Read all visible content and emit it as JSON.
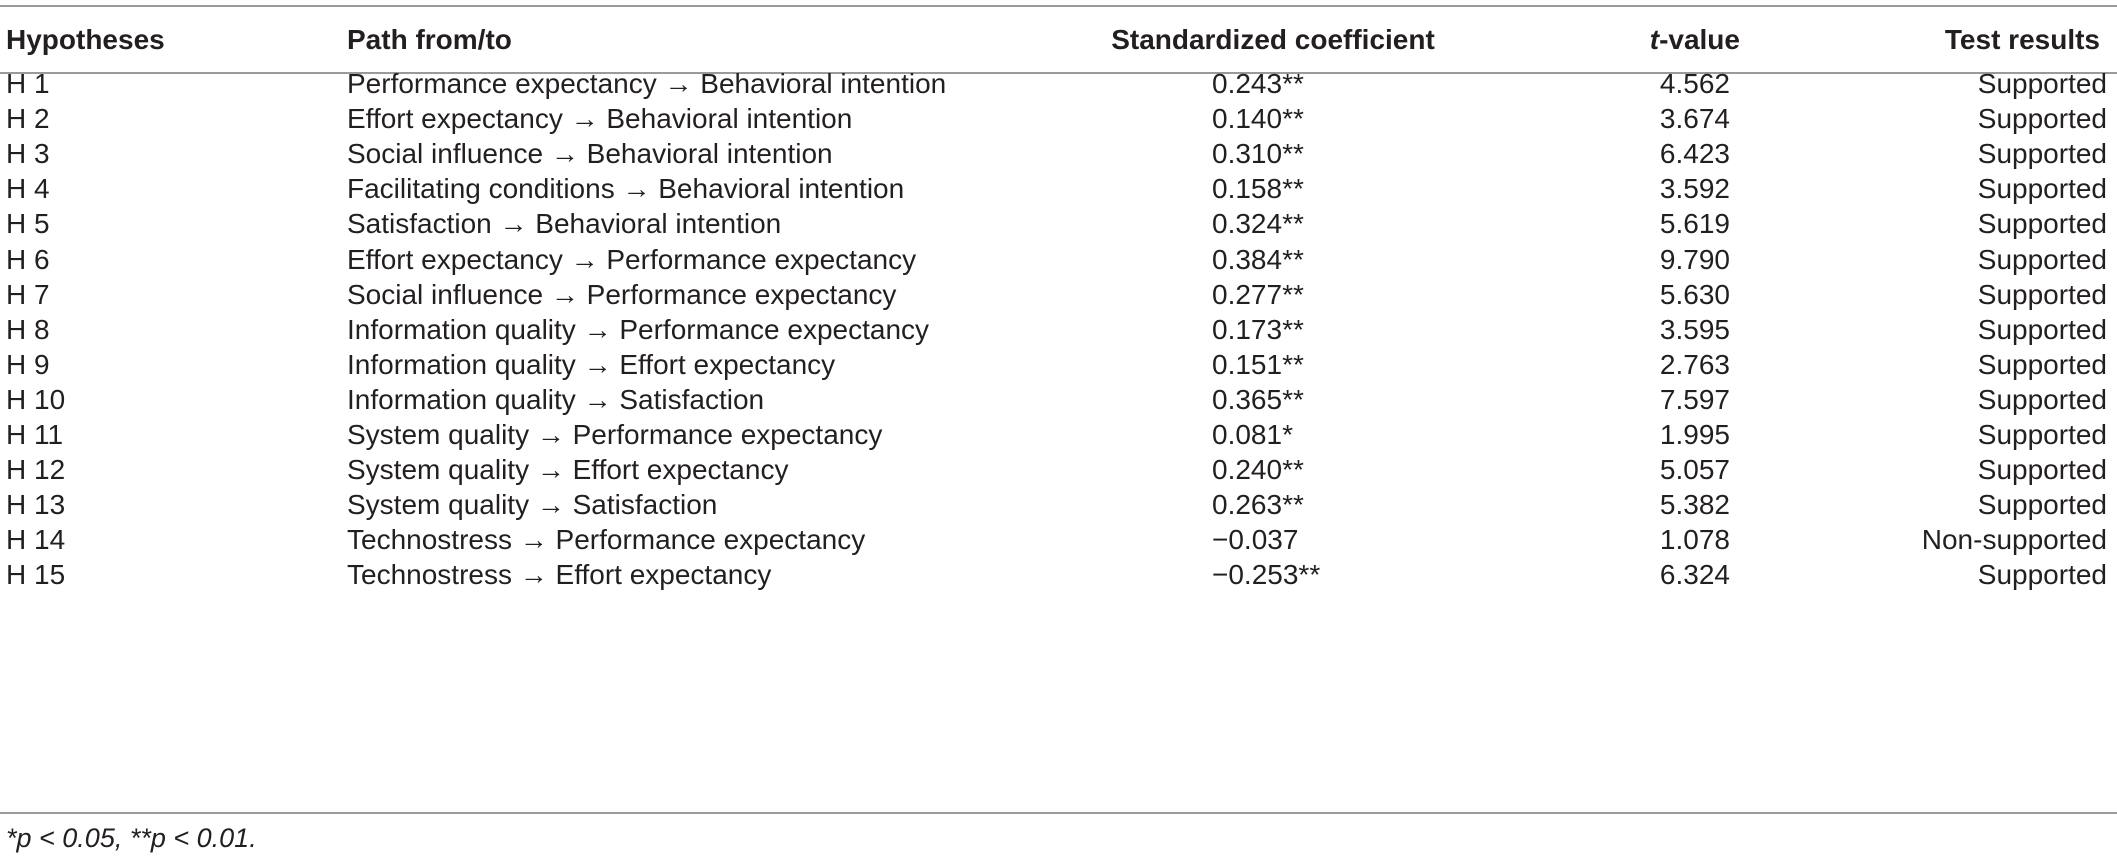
{
  "header": {
    "hypotheses": "Hypotheses",
    "path": "Path from/to",
    "coefficient": "Standardized coefficient",
    "t_value_italic": "t",
    "t_value_rest": "-value",
    "test_results": "Test results"
  },
  "rows": [
    {
      "h": "H 1",
      "path": "Performance expectancy → Behavioral intention",
      "coef": "0.243**",
      "t": "4.562",
      "result": "Supported"
    },
    {
      "h": "H 2",
      "path": "Effort expectancy → Behavioral intention",
      "coef": "0.140**",
      "t": "3.674",
      "result": "Supported"
    },
    {
      "h": "H 3",
      "path": "Social influence → Behavioral intention",
      "coef": "0.310**",
      "t": "6.423",
      "result": "Supported"
    },
    {
      "h": "H 4",
      "path": "Facilitating conditions → Behavioral intention",
      "coef": "0.158**",
      "t": "3.592",
      "result": "Supported"
    },
    {
      "h": "H 5",
      "path": "Satisfaction → Behavioral intention",
      "coef": "0.324**",
      "t": "5.619",
      "result": "Supported"
    },
    {
      "h": "H 6",
      "path": "Effort expectancy → Performance expectancy",
      "coef": "0.384**",
      "t": "9.790",
      "result": "Supported"
    },
    {
      "h": "H 7",
      "path": "Social influence → Performance expectancy",
      "coef": "0.277**",
      "t": "5.630",
      "result": "Supported"
    },
    {
      "h": "H 8",
      "path": "Information quality → Performance expectancy",
      "coef": "0.173**",
      "t": "3.595",
      "result": "Supported"
    },
    {
      "h": "H 9",
      "path": "Information quality → Effort expectancy",
      "coef": "0.151**",
      "t": "2.763",
      "result": "Supported"
    },
    {
      "h": "H 10",
      "path": "Information quality → Satisfaction",
      "coef": "0.365**",
      "t": "7.597",
      "result": "Supported"
    },
    {
      "h": "H 11",
      "path": "System quality → Performance expectancy",
      "coef": "0.081*",
      "t": "1.995",
      "result": "Supported"
    },
    {
      "h": "H 12",
      "path": "System quality → Effort expectancy",
      "coef": "0.240**",
      "t": "5.057",
      "result": "Supported"
    },
    {
      "h": "H 13",
      "path": "System quality → Satisfaction",
      "coef": "0.263**",
      "t": "5.382",
      "result": "Supported"
    },
    {
      "h": "H 14",
      "path": "Technostress → Performance expectancy",
      "coef": "−0.037",
      "t": "1.078",
      "result": "Non-supported"
    },
    {
      "h": "H 15",
      "path": "Technostress → Effort expectancy",
      "coef": "−0.253**",
      "t": "6.324",
      "result": "Supported"
    }
  ],
  "footnote": "*p < 0.05, **p < 0.01."
}
